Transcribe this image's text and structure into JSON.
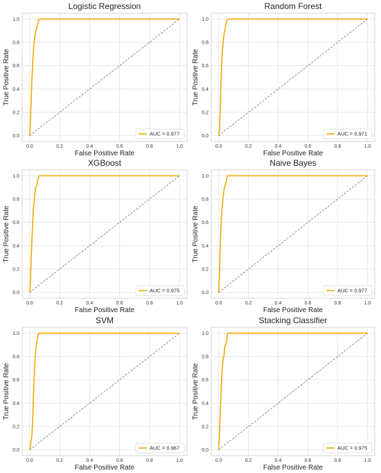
{
  "colors": {
    "roc": "#F2A900",
    "diagonal": "#555555",
    "grid": "#e3e3e3",
    "frame": "#c9c9c9"
  },
  "chart_data": [
    {
      "type": "line",
      "title": "Logistic Regression",
      "xlabel": "False Positive Rate",
      "ylabel": "True Positive Rate",
      "xlim": [
        0,
        1
      ],
      "ylim": [
        0,
        1
      ],
      "xticks": [
        "0.0",
        "0.2",
        "0.4",
        "0.6",
        "0.8",
        "1.0"
      ],
      "yticks": [
        "0.0",
        "0.2",
        "0.4",
        "0.6",
        "0.8",
        "1.0"
      ],
      "grid": true,
      "legend_position": "lower-right",
      "series": [
        {
          "name": "AUC = 0.977",
          "style": "roc",
          "x": [
            0,
            0.005,
            0.01,
            0.015,
            0.02,
            0.025,
            0.03,
            0.035,
            0.04,
            0.05,
            0.055,
            0.06,
            0.065,
            1.0
          ],
          "y": [
            0,
            0.12,
            0.3,
            0.48,
            0.62,
            0.72,
            0.8,
            0.85,
            0.9,
            0.93,
            0.97,
            0.99,
            1.0,
            1.0
          ]
        },
        {
          "name": "",
          "style": "diagonal",
          "x": [
            0,
            1
          ],
          "y": [
            0,
            1
          ]
        }
      ]
    },
    {
      "type": "line",
      "title": "Random Forest",
      "xlabel": "False Positive Rate",
      "ylabel": "True Positive Rate",
      "xlim": [
        0,
        1
      ],
      "ylim": [
        0,
        1
      ],
      "xticks": [
        "0.0",
        "0.2",
        "0.4",
        "0.6",
        "0.8",
        "1.0"
      ],
      "yticks": [
        "0.0",
        "0.2",
        "0.4",
        "0.6",
        "0.8",
        "1.0"
      ],
      "grid": true,
      "legend_position": "lower-right",
      "series": [
        {
          "name": "AUC = 0.971",
          "style": "roc",
          "x": [
            0,
            0.005,
            0.01,
            0.015,
            0.02,
            0.025,
            0.03,
            0.035,
            0.04,
            0.045,
            0.05,
            0.055,
            0.06,
            1.0
          ],
          "y": [
            0,
            0.05,
            0.2,
            0.45,
            0.62,
            0.73,
            0.8,
            0.86,
            0.9,
            0.93,
            0.96,
            0.99,
            1.0,
            1.0
          ]
        },
        {
          "name": "",
          "style": "diagonal",
          "x": [
            0,
            1
          ],
          "y": [
            0,
            1
          ]
        }
      ]
    },
    {
      "type": "line",
      "title": "XGBoost",
      "xlabel": "False Positive Rate",
      "ylabel": "True Positive Rate",
      "xlim": [
        0,
        1
      ],
      "ylim": [
        0,
        1
      ],
      "xticks": [
        "0.0",
        "0.2",
        "0.4",
        "0.6",
        "0.8",
        "1.0"
      ],
      "yticks": [
        "0.0",
        "0.2",
        "0.4",
        "0.6",
        "0.8",
        "1.0"
      ],
      "grid": true,
      "legend_position": "lower-right",
      "series": [
        {
          "name": "AUC = 0.975",
          "style": "roc",
          "x": [
            0,
            0.005,
            0.01,
            0.015,
            0.02,
            0.025,
            0.03,
            0.035,
            0.04,
            0.05,
            0.055,
            0.06,
            0.065,
            1.0
          ],
          "y": [
            0,
            0.1,
            0.28,
            0.45,
            0.6,
            0.72,
            0.78,
            0.85,
            0.9,
            0.93,
            0.97,
            0.99,
            1.0,
            1.0
          ]
        },
        {
          "name": "",
          "style": "diagonal",
          "x": [
            0,
            1
          ],
          "y": [
            0,
            1
          ]
        }
      ]
    },
    {
      "type": "line",
      "title": "Naive Bayes",
      "xlabel": "False Positive Rate",
      "ylabel": "True Positive Rate",
      "xlim": [
        0,
        1
      ],
      "ylim": [
        0,
        1
      ],
      "xticks": [
        "0.0",
        "0.2",
        "0.4",
        "0.6",
        "0.8",
        "1.0"
      ],
      "yticks": [
        "0.0",
        "0.2",
        "0.4",
        "0.6",
        "0.8",
        "1.0"
      ],
      "grid": true,
      "legend_position": "lower-right",
      "series": [
        {
          "name": "AUC = 0.977",
          "style": "roc",
          "x": [
            0,
            0.005,
            0.01,
            0.015,
            0.02,
            0.025,
            0.03,
            0.035,
            0.04,
            0.05,
            0.055,
            0.06,
            1.0
          ],
          "y": [
            0,
            0.15,
            0.38,
            0.55,
            0.68,
            0.76,
            0.82,
            0.87,
            0.91,
            0.94,
            0.98,
            1.0,
            1.0
          ]
        },
        {
          "name": "",
          "style": "diagonal",
          "x": [
            0,
            1
          ],
          "y": [
            0,
            1
          ]
        }
      ]
    },
    {
      "type": "line",
      "title": "SVM",
      "xlabel": "False Positive Rate",
      "ylabel": "True Positive Rate",
      "xlim": [
        0,
        1
      ],
      "ylim": [
        0,
        1
      ],
      "xticks": [
        "0.0",
        "0.2",
        "0.4",
        "0.6",
        "0.8",
        "1.0"
      ],
      "yticks": [
        "0.0",
        "0.2",
        "0.4",
        "0.6",
        "0.8",
        "1.0"
      ],
      "grid": true,
      "legend_position": "lower-right",
      "series": [
        {
          "name": "AUC = 0.967",
          "style": "roc",
          "x": [
            0,
            0.005,
            0.01,
            0.015,
            0.02,
            0.025,
            0.03,
            0.035,
            0.04,
            0.045,
            0.05,
            0.055,
            0.06,
            1.0
          ],
          "y": [
            0,
            0.05,
            0.08,
            0.12,
            0.25,
            0.45,
            0.62,
            0.75,
            0.85,
            0.9,
            0.94,
            0.98,
            1.0,
            1.0
          ]
        },
        {
          "name": "",
          "style": "diagonal",
          "x": [
            0,
            1
          ],
          "y": [
            0,
            1
          ]
        }
      ]
    },
    {
      "type": "line",
      "title": "Stacking Classifier",
      "xlabel": "False Positive Rate",
      "ylabel": "True Positive Rate",
      "xlim": [
        0,
        1
      ],
      "ylim": [
        0,
        1
      ],
      "xticks": [
        "0.0",
        "0.2",
        "0.4",
        "0.6",
        "0.8",
        "1.0"
      ],
      "yticks": [
        "0.0",
        "0.2",
        "0.4",
        "0.6",
        "0.8",
        "1.0"
      ],
      "grid": true,
      "legend_position": "lower-right",
      "series": [
        {
          "name": "AUC = 0.975",
          "style": "roc",
          "x": [
            0,
            0.005,
            0.01,
            0.015,
            0.02,
            0.025,
            0.03,
            0.035,
            0.04,
            0.045,
            0.05,
            0.055,
            0.06,
            1.0
          ],
          "y": [
            0,
            0.12,
            0.3,
            0.48,
            0.62,
            0.72,
            0.79,
            0.8,
            0.88,
            0.9,
            0.91,
            0.96,
            1.0,
            1.0
          ]
        },
        {
          "name": "",
          "style": "diagonal",
          "x": [
            0,
            1
          ],
          "y": [
            0,
            1
          ]
        }
      ]
    }
  ]
}
